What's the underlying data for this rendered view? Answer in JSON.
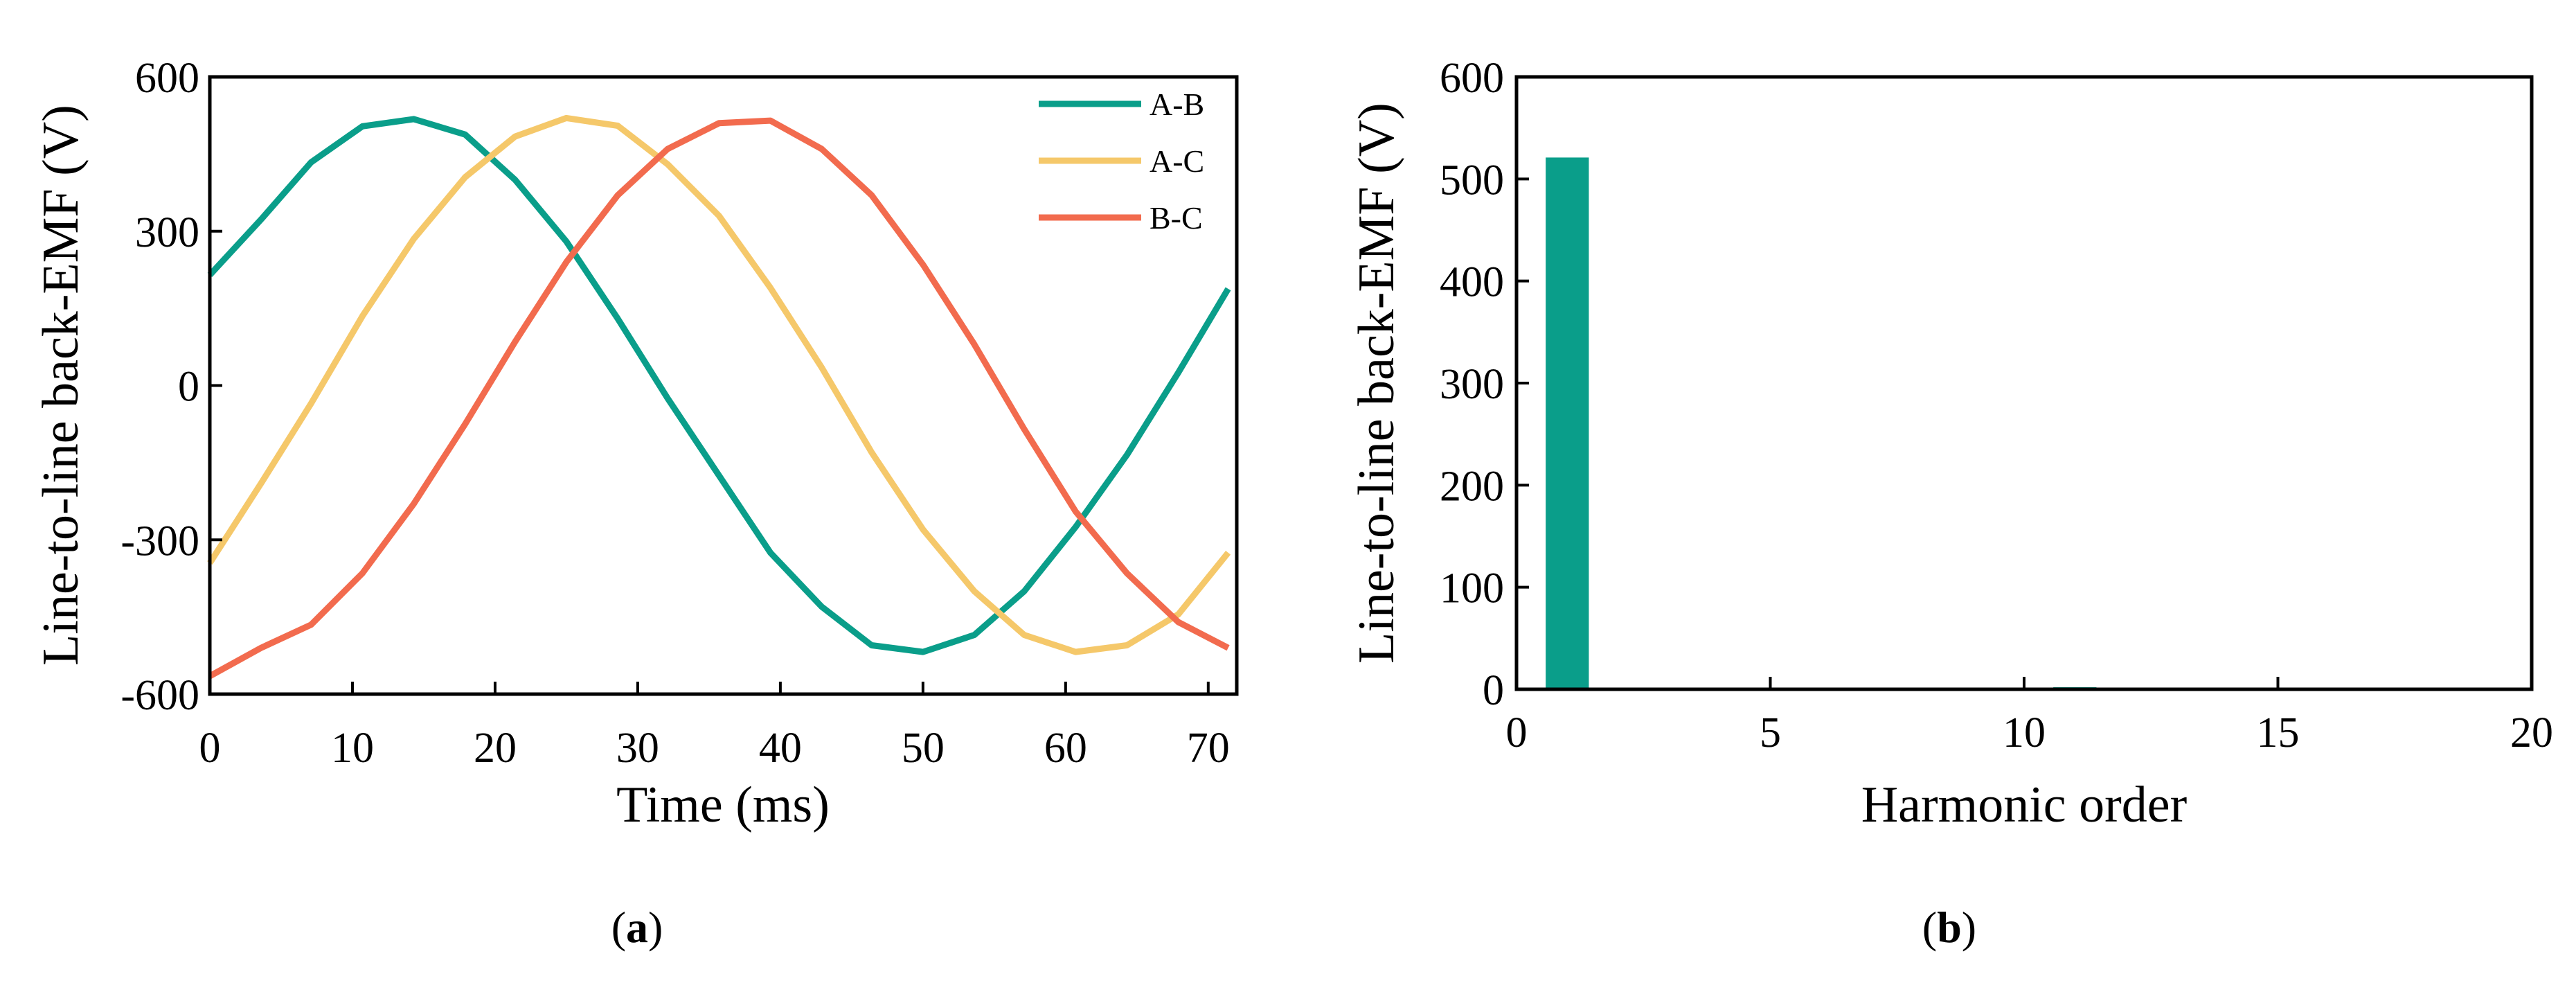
{
  "chart_data": [
    {
      "type": "line",
      "panel_label_prefix": "(",
      "panel_label": "a",
      "panel_label_suffix": ")",
      "xlabel": "Time (ms)",
      "ylabel": "Line-to-line back-EMF (V)",
      "xlim": [
        0,
        72
      ],
      "ylim": [
        -600,
        600
      ],
      "xticks": [
        "0",
        "10",
        "20",
        "30",
        "40",
        "50",
        "60",
        "70"
      ],
      "yticks": [
        "-600",
        "-300",
        "0",
        "300",
        "600"
      ],
      "grid": false,
      "legend_position": "top-right",
      "x": [
        0,
        3.6,
        7.1,
        10.7,
        14.3,
        17.9,
        21.4,
        25.0,
        28.6,
        32.1,
        35.7,
        39.3,
        42.9,
        46.4,
        50.0,
        53.6,
        57.1,
        60.7,
        64.3,
        67.9,
        71.4
      ],
      "series": [
        {
          "name": "A-B",
          "color": "#0a9e8a",
          "values": [
            215,
            323,
            434,
            504,
            518,
            488,
            400,
            280,
            130,
            -25,
            -175,
            -325,
            -430,
            -505,
            -518,
            -485,
            -400,
            -275,
            -135,
            25,
            188
          ]
        },
        {
          "name": "A-C",
          "color": "#f5c86a",
          "values": [
            -345,
            -190,
            -35,
            135,
            285,
            405,
            484,
            520,
            505,
            430,
            330,
            190,
            35,
            -130,
            -280,
            -400,
            -485,
            -518,
            -505,
            -445,
            -325
          ]
        },
        {
          "name": "B-C",
          "color": "#f26b4e",
          "values": [
            -565,
            -510,
            -465,
            -365,
            -230,
            -75,
            85,
            240,
            370,
            460,
            510,
            515,
            460,
            370,
            235,
            80,
            -85,
            -245,
            -365,
            -460,
            -510
          ]
        }
      ]
    },
    {
      "type": "bar",
      "panel_label_prefix": "(",
      "panel_label": "b",
      "panel_label_suffix": ")",
      "xlabel": "Harmonic order",
      "ylabel": "Line-to-line back-EMF (V)",
      "xlim": [
        0,
        20
      ],
      "ylim": [
        0,
        600
      ],
      "xticks": [
        "0",
        "5",
        "10",
        "15",
        "20"
      ],
      "yticks": [
        "0",
        "100",
        "200",
        "300",
        "400",
        "500",
        "600"
      ],
      "grid": false,
      "color": "#0a9e8a",
      "categories": [
        1,
        11
      ],
      "values": [
        521,
        2
      ]
    }
  ]
}
